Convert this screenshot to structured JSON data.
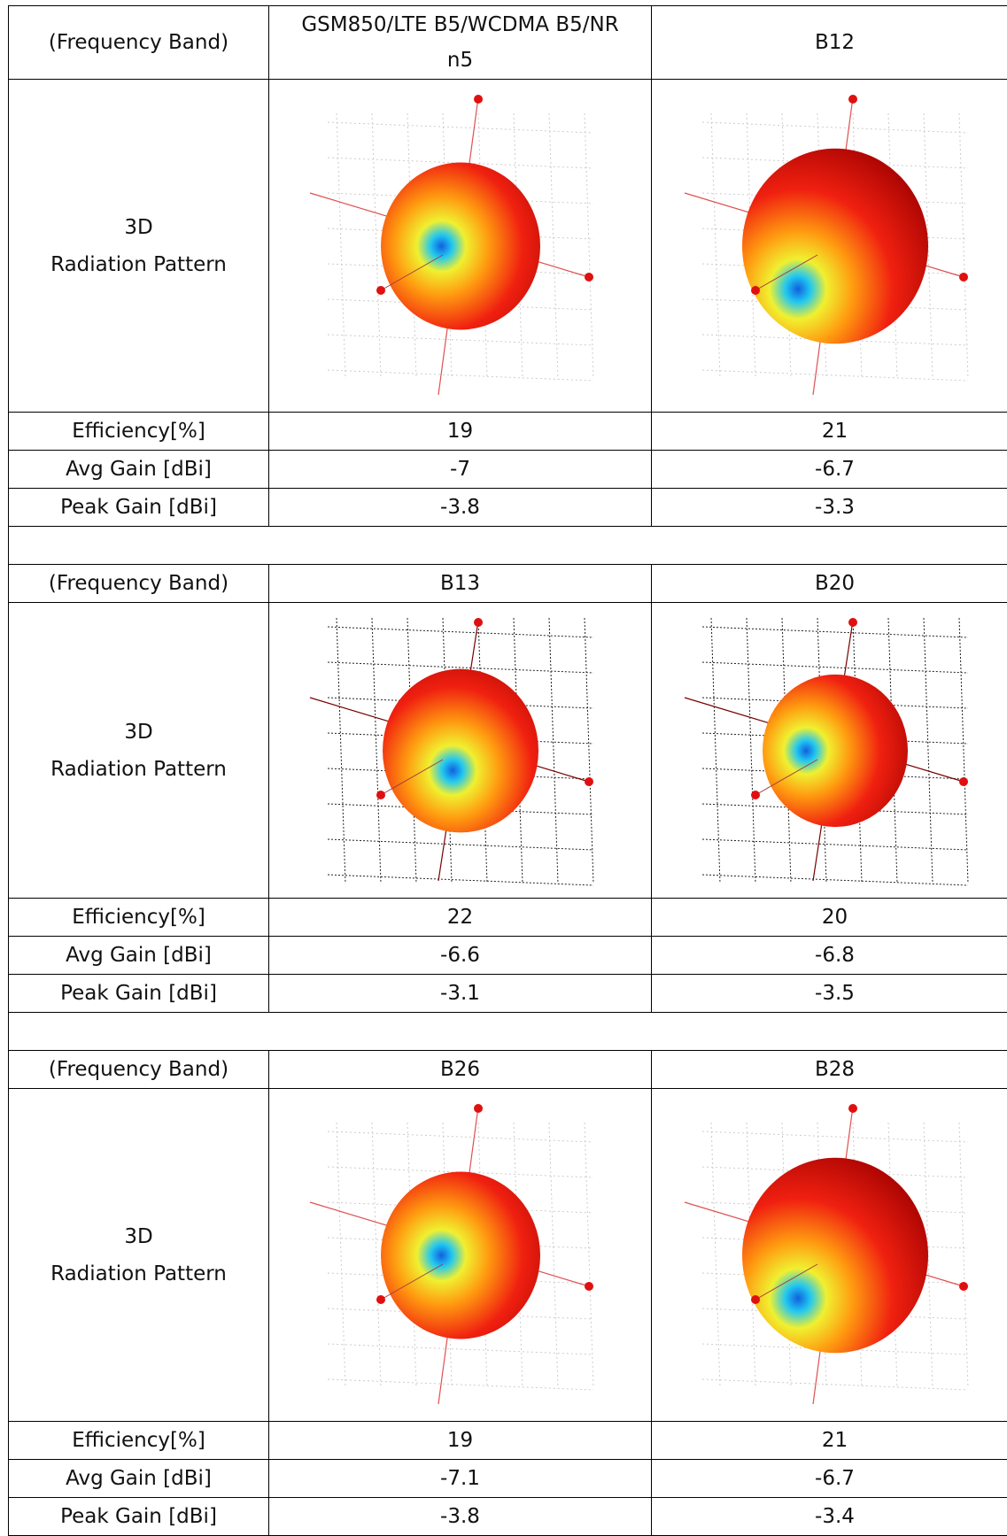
{
  "blocks": [
    {
      "header": {
        "label": "(Frequency Band)",
        "bands": [
          "GSM850/LTE B5/WCDMA B5/NR n5",
          "B12"
        ]
      },
      "pattern": {
        "lines": [
          "3D",
          "Radiation Pattern"
        ]
      },
      "rows": [
        {
          "label": "Efficiency[%]",
          "values": [
            "19",
            "21"
          ]
        },
        {
          "label": "Avg Gain [dBi]",
          "values": [
            "-7",
            "-6.7"
          ]
        },
        {
          "label": "Peak Gain [dBi]",
          "values": [
            "-3.8",
            "-3.3"
          ]
        }
      ]
    },
    {
      "header": {
        "label": "(Frequency Band)",
        "bands": [
          "B13",
          "B20"
        ]
      },
      "pattern": {
        "lines": [
          "3D",
          "Radiation Pattern"
        ]
      },
      "rows": [
        {
          "label": "Efficiency[%]",
          "values": [
            "22",
            "20"
          ]
        },
        {
          "label": "Avg Gain [dBi]",
          "values": [
            "-6.6",
            "-6.8"
          ]
        },
        {
          "label": "Peak Gain [dBi]",
          "values": [
            "-3.1",
            "-3.5"
          ]
        }
      ]
    },
    {
      "header": {
        "label": "(Frequency Band)",
        "bands": [
          "B26",
          "B28"
        ]
      },
      "pattern": {
        "lines": [
          "3D",
          "Radiation Pattern"
        ]
      },
      "rows": [
        {
          "label": "Efficiency[%]",
          "values": [
            "19",
            "21"
          ]
        },
        {
          "label": "Avg Gain [dBi]",
          "values": [
            "-7.1",
            "-6.7"
          ]
        },
        {
          "label": "Peak Gain [dBi]",
          "values": [
            "-3.8",
            "-3.4"
          ]
        }
      ]
    }
  ]
}
